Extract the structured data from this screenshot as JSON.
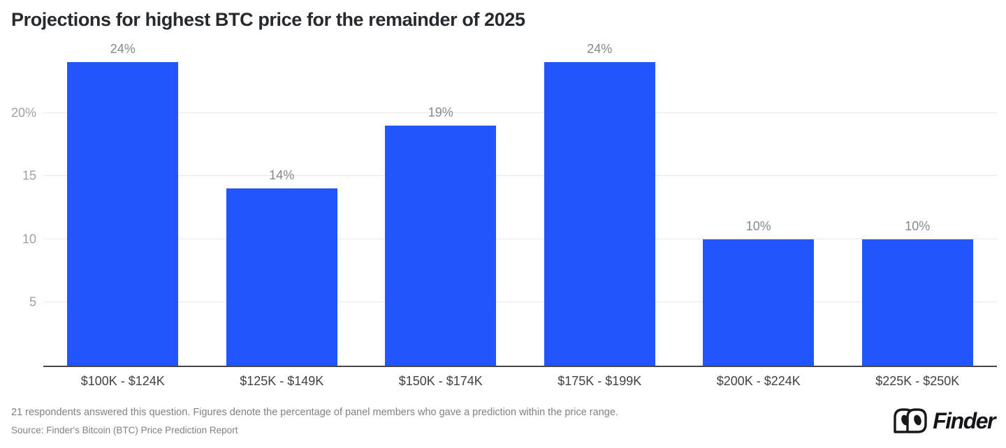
{
  "title": "Projections for highest BTC price for the remainder of 2025",
  "chart_data": {
    "type": "bar",
    "title": "Projections for highest BTC price for the remainder of 2025",
    "categories": [
      "$100K - $124K",
      "$125K - $149K",
      "$150K - $174K",
      "$175K - $199K",
      "$200K - $224K",
      "$225K - $250K"
    ],
    "values": [
      24,
      14,
      19,
      24,
      10,
      10
    ],
    "value_labels": [
      "24%",
      "14%",
      "19%",
      "24%",
      "10%",
      "10%"
    ],
    "yticks": [
      {
        "value": 5,
        "label": "5"
      },
      {
        "value": 10,
        "label": "10"
      },
      {
        "value": 15,
        "label": "15"
      },
      {
        "value": 20,
        "label": "20%"
      }
    ],
    "ylim": [
      0,
      25.6
    ],
    "xlabel": "",
    "ylabel": "",
    "grid": true,
    "legend": "none",
    "bar_color": "#2255FB"
  },
  "footer": {
    "note": "21 respondents answered this question. Figures denote the percentage of panel members who gave a prediction within the price range.",
    "source": "Source: Finder's Bitcoin (BTC) Price Prediction Report"
  },
  "logo": {
    "brand": "Finder"
  }
}
